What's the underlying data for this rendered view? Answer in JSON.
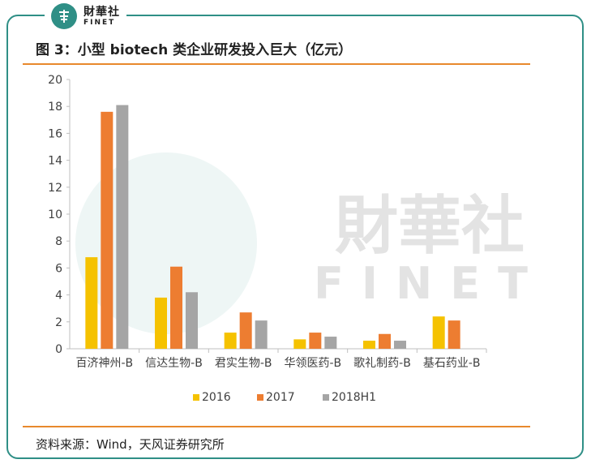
{
  "brand": {
    "cn": "財華社",
    "en": "FINET"
  },
  "title": "图 3：小型 biotech 类企业研发投入巨大（亿元）",
  "source": "资料来源：Wind，天风证券研究所",
  "watermark": {
    "cn": "財華社",
    "en": "FINET"
  },
  "colors": {
    "frame": "#2f8f86",
    "rule": "#e8892c",
    "s2016": "#f5c200",
    "s2017": "#ed7d31",
    "s2018": "#a5a5a5"
  },
  "chart_data": {
    "type": "bar",
    "title": "",
    "xlabel": "",
    "ylabel": "",
    "ylim": [
      0,
      20
    ],
    "yticks": [
      "0",
      "2",
      "4",
      "6",
      "8",
      "10",
      "12",
      "14",
      "16",
      "18",
      "20"
    ],
    "categories": [
      "百济神州-B",
      "信达生物-B",
      "君实生物-B",
      "华领医药-B",
      "歌礼制药-B",
      "基石药业-B"
    ],
    "series": [
      {
        "name": "2016",
        "values": [
          6.8,
          3.8,
          1.2,
          0.7,
          0.6,
          2.4
        ]
      },
      {
        "name": "2017",
        "values": [
          17.6,
          6.1,
          2.7,
          1.2,
          1.1,
          2.1
        ]
      },
      {
        "name": "2018H1",
        "values": [
          18.1,
          4.2,
          2.1,
          0.9,
          0.6,
          null
        ]
      }
    ],
    "legend": "bottom",
    "grid": false
  }
}
